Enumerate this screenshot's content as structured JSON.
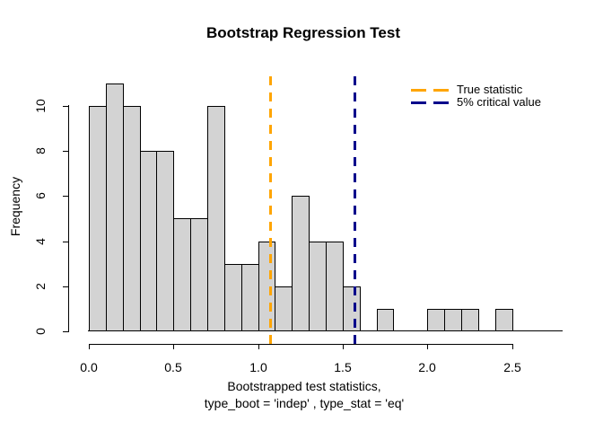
{
  "chart_data": {
    "type": "bar",
    "subtype": "histogram",
    "title": "Bootstrap Regression Test",
    "xlabel": "Bootstrapped test statistics, type_boot = 'indep' , type_stat = 'eq'",
    "xlabel_line1": "Bootstrapped test statistics,",
    "xlabel_line2": "type_boot = 'indep' , type_stat = 'eq'",
    "ylabel": "Frequency",
    "bin_start": 0.0,
    "bin_width": 0.1,
    "counts": [
      10,
      11,
      10,
      8,
      8,
      5,
      5,
      10,
      3,
      3,
      4,
      2,
      6,
      4,
      4,
      2,
      0,
      1,
      0,
      0,
      1,
      1,
      1,
      0,
      1
    ],
    "total_observations": 100,
    "x_ticks": [
      "0.0",
      "0.5",
      "1.0",
      "1.5",
      "2.0",
      "2.5"
    ],
    "x_tick_values": [
      0,
      0.5,
      1,
      1.5,
      2,
      2.5
    ],
    "y_ticks": [
      "0",
      "2",
      "4",
      "6",
      "8",
      "10"
    ],
    "y_tick_values": [
      0,
      2,
      4,
      6,
      8,
      10
    ],
    "xlim": [
      0,
      2.5
    ],
    "ylim": [
      0,
      11
    ],
    "grid": false,
    "bar_fill": "#D3D3D3",
    "bar_stroke": "#000000",
    "vlines": [
      {
        "label": "True statistic",
        "value": 1.07,
        "color": "#FFA500",
        "style": "dashed"
      },
      {
        "label": "5% critical value",
        "value": 1.57,
        "color": "#00008B",
        "style": "dashed"
      }
    ],
    "legend_position": "top-right"
  }
}
